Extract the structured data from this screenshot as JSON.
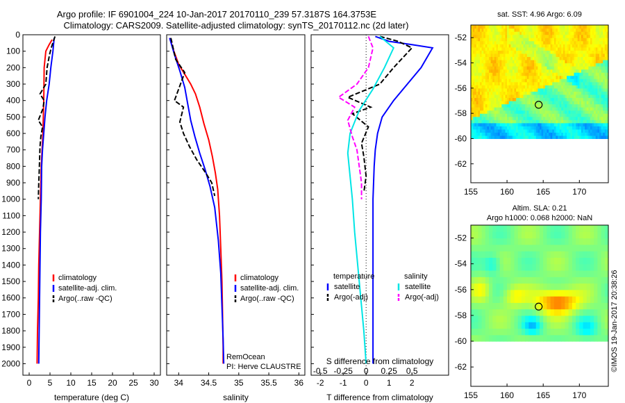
{
  "title": {
    "line1": "Argo profile: IF 6901004_224 10-Jan-2017 20170110_239 57.3187S 164.3753E",
    "line2": "Climatology: CARS2009. Satellite-adjusted climatology: synTS_20170112.nc (2d later)"
  },
  "chart_data": [
    {
      "type": "line",
      "name": "temperature-profile",
      "xlabel": "temperature (deg C)",
      "ylabel": "",
      "xlim": [
        -1.5,
        31.5
      ],
      "ylim": [
        2070,
        0
      ],
      "xticks": [
        0,
        5,
        10,
        15,
        20,
        25,
        30
      ],
      "yticks": [
        0,
        100,
        200,
        300,
        400,
        500,
        600,
        700,
        800,
        900,
        1000,
        1100,
        1200,
        1300,
        1400,
        1500,
        1600,
        1700,
        1800,
        1900,
        2000
      ],
      "legend": [
        "climatology",
        "satellite-adj. clim.",
        "Argo(..raw -QC)"
      ],
      "legend_position": "lower-right",
      "series": [
        {
          "label": "climatology",
          "color": "#ff0000",
          "style": "solid",
          "points": [
            [
              5.5,
              30
            ],
            [
              4.8,
              60
            ],
            [
              4.0,
              100
            ],
            [
              3.6,
              200
            ],
            [
              3.5,
              400
            ],
            [
              3.3,
              600
            ],
            [
              2.9,
              800
            ],
            [
              2.7,
              1000
            ],
            [
              2.5,
              1200
            ],
            [
              2.3,
              1400
            ],
            [
              2.2,
              1600
            ],
            [
              2.0,
              1800
            ],
            [
              1.9,
              2000
            ]
          ]
        },
        {
          "label": "satellite-adj. clim.",
          "color": "#0000ff",
          "style": "solid",
          "points": [
            [
              6.0,
              20
            ],
            [
              5.7,
              100
            ],
            [
              5.2,
              200
            ],
            [
              4.8,
              300
            ],
            [
              4.2,
              400
            ],
            [
              3.8,
              500
            ],
            [
              3.5,
              600
            ],
            [
              3.2,
              700
            ],
            [
              3.0,
              800
            ],
            [
              2.9,
              1000
            ],
            [
              2.7,
              1200
            ],
            [
              2.6,
              1400
            ],
            [
              2.5,
              1600
            ],
            [
              2.4,
              1800
            ],
            [
              2.3,
              2000
            ]
          ]
        },
        {
          "label": "Argo(..raw -QC)",
          "color": "#000000",
          "style": "dashed",
          "points": [
            [
              6.2,
              10
            ],
            [
              5.8,
              40
            ],
            [
              5.3,
              80
            ],
            [
              4.9,
              120
            ],
            [
              4.3,
              200
            ],
            [
              4.0,
              300
            ],
            [
              2.6,
              360
            ],
            [
              3.6,
              400
            ],
            [
              3.3,
              450
            ],
            [
              2.2,
              520
            ],
            [
              3.2,
              560
            ],
            [
              2.8,
              620
            ],
            [
              2.6,
              680
            ],
            [
              2.5,
              760
            ],
            [
              2.4,
              840
            ],
            [
              2.3,
              900
            ],
            [
              2.2,
              1000
            ]
          ]
        }
      ]
    },
    {
      "type": "line",
      "name": "salinity-profile",
      "xlabel": "salinity",
      "ylabel": "",
      "xlim": [
        33.8,
        36.1
      ],
      "ylim": [
        2070,
        0
      ],
      "xticks": [
        34,
        34.5,
        35,
        35.5,
        36
      ],
      "legend": [
        "climatology",
        "satellite-adj. clim.",
        "Argo(..raw -QC)"
      ],
      "legend_position": "lower-right",
      "annotations": [
        "RemOcean",
        "PI: Herve CLAUSTRE"
      ],
      "series": [
        {
          "label": "climatology",
          "color": "#ff0000",
          "style": "solid",
          "points": [
            [
              33.85,
              20
            ],
            [
              33.92,
              100
            ],
            [
              34.0,
              180
            ],
            [
              34.1,
              240
            ],
            [
              34.2,
              300
            ],
            [
              34.28,
              360
            ],
            [
              34.35,
              440
            ],
            [
              34.42,
              540
            ],
            [
              34.5,
              640
            ],
            [
              34.56,
              740
            ],
            [
              34.61,
              840
            ],
            [
              34.65,
              940
            ],
            [
              34.68,
              1100
            ],
            [
              34.7,
              1300
            ],
            [
              34.72,
              1500
            ],
            [
              34.73,
              1700
            ],
            [
              34.74,
              1900
            ],
            [
              34.74,
              2000
            ]
          ]
        },
        {
          "label": "satellite-adj. clim.",
          "color": "#0000ff",
          "style": "solid",
          "points": [
            [
              33.85,
              20
            ],
            [
              33.93,
              120
            ],
            [
              34.02,
              220
            ],
            [
              34.1,
              320
            ],
            [
              34.15,
              420
            ],
            [
              34.2,
              520
            ],
            [
              34.27,
              620
            ],
            [
              34.35,
              720
            ],
            [
              34.44,
              820
            ],
            [
              34.52,
              920
            ],
            [
              34.6,
              1050
            ],
            [
              34.66,
              1250
            ],
            [
              34.7,
              1450
            ],
            [
              34.72,
              1650
            ],
            [
              34.74,
              1850
            ],
            [
              34.75,
              2000
            ]
          ]
        },
        {
          "label": "Argo(..raw -QC)",
          "color": "#000000",
          "style": "dashed",
          "points": [
            [
              33.87,
              20
            ],
            [
              33.95,
              150
            ],
            [
              34.1,
              230
            ],
            [
              34.03,
              300
            ],
            [
              33.93,
              400
            ],
            [
              34.08,
              440
            ],
            [
              34.02,
              530
            ],
            [
              34.08,
              600
            ],
            [
              34.18,
              680
            ],
            [
              34.3,
              760
            ],
            [
              34.45,
              840
            ],
            [
              34.55,
              900
            ],
            [
              34.6,
              980
            ]
          ]
        }
      ]
    },
    {
      "type": "line",
      "name": "difference-profile",
      "xlabel": "T difference from climatology",
      "xlabel2": "S difference from climatology",
      "xlim": [
        -2.4,
        3.6
      ],
      "ylim": [
        2070,
        0
      ],
      "xticks": [
        -2,
        -1,
        0,
        1,
        2
      ],
      "xticks2": [
        "-0.5",
        "-0.25",
        "0",
        "0.25",
        "0.5"
      ],
      "legend_headers": [
        "temperature",
        "salinity"
      ],
      "legend": [
        "satellite",
        "Argo(-adj)",
        "satellite",
        "Argo(-adj)"
      ],
      "legend_position": "lower-center",
      "series": [
        {
          "label": "T satellite",
          "color": "#0000ff",
          "style": "solid",
          "points": [
            [
              0.4,
              10
            ],
            [
              1.0,
              40
            ],
            [
              2.0,
              60
            ],
            [
              2.9,
              80
            ],
            [
              2.4,
              200
            ],
            [
              1.8,
              300
            ],
            [
              1.2,
              400
            ],
            [
              0.7,
              500
            ],
            [
              0.5,
              600
            ],
            [
              0.4,
              700
            ],
            [
              0.35,
              800
            ],
            [
              0.3,
              1000
            ],
            [
              0.3,
              1400
            ],
            [
              0.3,
              1800
            ],
            [
              0.3,
              2000
            ]
          ]
        },
        {
          "label": "T Argo(-adj)",
          "color": "#000000",
          "style": "dashed",
          "points": [
            [
              0.6,
              10
            ],
            [
              1.4,
              40
            ],
            [
              2.0,
              80
            ],
            [
              1.2,
              200
            ],
            [
              0.6,
              300
            ],
            [
              -0.8,
              380
            ],
            [
              0.2,
              440
            ],
            [
              -0.6,
              480
            ],
            [
              0.1,
              560
            ],
            [
              -0.2,
              660
            ],
            [
              -0.1,
              740
            ],
            [
              0.0,
              860
            ],
            [
              -0.1,
              960
            ]
          ]
        },
        {
          "label": "S satellite",
          "color": "#00e5e5",
          "style": "solid",
          "points": [
            [
              0.6,
              10
            ],
            [
              1.2,
              80
            ],
            [
              0.8,
              200
            ],
            [
              0.3,
              330
            ],
            [
              -0.3,
              460
            ],
            [
              -0.7,
              600
            ],
            [
              -0.8,
              720
            ],
            [
              -0.7,
              860
            ],
            [
              -0.6,
              1000
            ],
            [
              -0.5,
              1200
            ],
            [
              -0.3,
              1500
            ],
            [
              -0.1,
              1800
            ],
            [
              0.0,
              2000
            ]
          ]
        },
        {
          "label": "S Argo(-adj)",
          "color": "#ff00ff",
          "style": "dashed",
          "points": [
            [
              0.1,
              10
            ],
            [
              0.3,
              80
            ],
            [
              0.1,
              200
            ],
            [
              -0.4,
              300
            ],
            [
              -1.2,
              380
            ],
            [
              -0.5,
              440
            ],
            [
              -0.8,
              520
            ],
            [
              -0.6,
              620
            ],
            [
              -0.4,
              700
            ],
            [
              -0.3,
              800
            ],
            [
              -0.2,
              900
            ],
            [
              -0.2,
              1000
            ]
          ]
        }
      ]
    },
    {
      "type": "heatmap",
      "name": "sst-map",
      "title": "sat. SST: 4.96  Argo: 6.09",
      "xlim": [
        155,
        174
      ],
      "ylim": [
        -63.5,
        -51
      ],
      "xticks": [
        155,
        160,
        165,
        170
      ],
      "yticks": [
        -52,
        -54,
        -56,
        -58,
        -60,
        -62
      ],
      "data_extent": {
        "lon": [
          155,
          174
        ],
        "lat": [
          -60,
          -51
        ]
      },
      "colormap": "jet",
      "marker": {
        "lon": 164.3753,
        "lat": -57.3187
      }
    },
    {
      "type": "heatmap",
      "name": "sla-map",
      "title_line1": "Altim. SLA: 0.21",
      "title_line2": "Argo h1000: 0.068 h2000: NaN",
      "xlim": [
        155,
        174
      ],
      "ylim": [
        -63.5,
        -51
      ],
      "xticks": [
        155,
        160,
        165,
        170
      ],
      "yticks": [
        -52,
        -54,
        -56,
        -58,
        -60,
        -62
      ],
      "data_extent": {
        "lon": [
          155,
          174
        ],
        "lat": [
          -60,
          -51
        ]
      },
      "colormap": "jet",
      "marker": {
        "lon": 164.3753,
        "lat": -57.3187
      }
    }
  ],
  "side_note": "©IMOS 19-Jan-2017 20:38:26",
  "colors": {
    "red": "#ff0000",
    "blue": "#0000ff",
    "black": "#000000",
    "cyan": "#00e5e5",
    "magenta": "#ff00ff"
  }
}
